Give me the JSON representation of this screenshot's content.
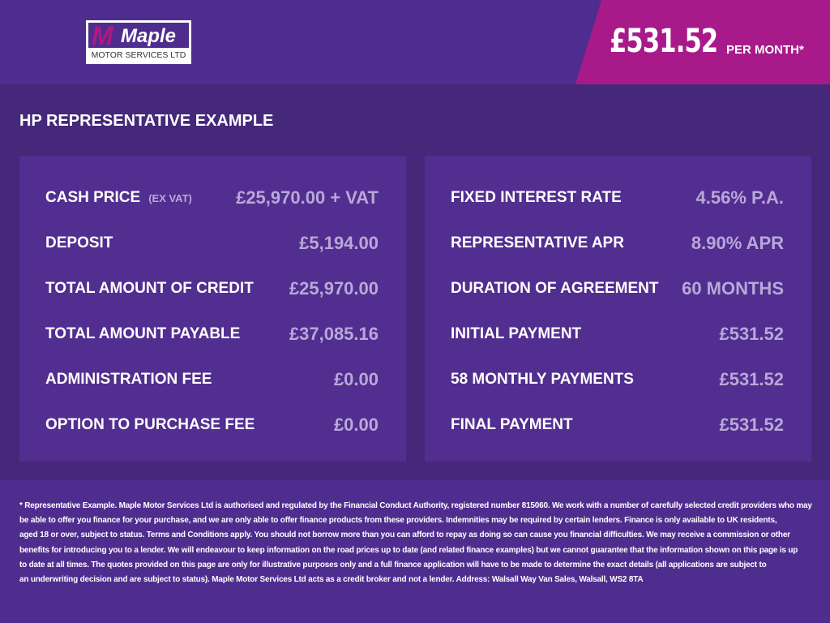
{
  "logo": {
    "mark": "M",
    "name": "Maple",
    "subtitle": "MOTOR SERVICES LTD"
  },
  "header": {
    "price": "£531.52",
    "per_month": "PER MONTH*"
  },
  "title": "HP REPRESENTATIVE EXAMPLE",
  "left_rows": [
    {
      "label": "CASH PRICE",
      "sub": "(EX VAT)",
      "value": "£25,970.00 + VAT"
    },
    {
      "label": "DEPOSIT",
      "value": "£5,194.00"
    },
    {
      "label": "TOTAL AMOUNT OF CREDIT",
      "value": "£25,970.00"
    },
    {
      "label": "TOTAL AMOUNT PAYABLE",
      "value": "£37,085.16"
    },
    {
      "label": "ADMINISTRATION FEE",
      "value": "£0.00"
    },
    {
      "label": "OPTION TO PURCHASE FEE",
      "value": "£0.00"
    }
  ],
  "right_rows": [
    {
      "label": "FIXED INTEREST RATE",
      "value": "4.56% P.A."
    },
    {
      "label": "REPRESENTATIVE APR",
      "value": "8.90% APR"
    },
    {
      "label": "DURATION OF AGREEMENT",
      "value": "60 MONTHS"
    },
    {
      "label": "INITIAL PAYMENT",
      "value": "£531.52"
    },
    {
      "label": "58 MONTHLY PAYMENTS",
      "value": "£531.52"
    },
    {
      "label": "FINAL PAYMENT",
      "value": "£531.52"
    }
  ],
  "footer_lines": [
    "* Representative Example. Maple Motor Services Ltd is authorised and regulated by the Financial Conduct Authority, registered number 815060. We work with a number of carefully selected credit providers who may",
    "be able to offer you finance for your purchase, and we are only able to offer finance products from these providers. Indemnities may be required by certain lenders. Finance is only available to UK residents,",
    "aged 18 or over, subject to status. Terms and Conditions apply. You should not borrow more than you can afford to repay as doing so can cause you financial difficulties. We may receive a commission or other",
    "benefits for introducing you to a lender. We will endeavour to keep information on the road prices up to date (and related finance examples) but we cannot guarantee that the information shown on this page is up",
    "to date at all times. The quotes provided on this page are only for illustrative purposes only and a full finance application will have to be made to determine the exact details (all applications are subject to",
    "an underwriting decision and are subject to status). Maple Motor Services Ltd acts as a credit broker and not a lender. Address: Walsall Way Van Sales, Walsall, WS2 8TA"
  ],
  "colors": {
    "background": "#4f2d8f",
    "band": "#45287a",
    "panel": "#522e90",
    "accent": "#a8198a",
    "value_text": "#b8a8d8"
  }
}
